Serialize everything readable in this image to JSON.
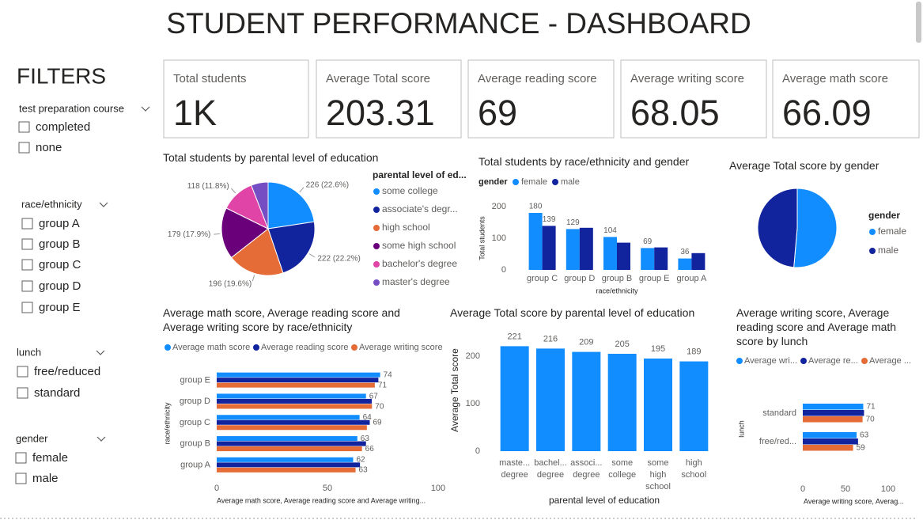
{
  "title": "STUDENT PERFORMANCE - DASHBOARD",
  "filters": {
    "title": "FILTERS",
    "groups": [
      {
        "name": "test preparation course",
        "options": [
          "completed",
          "none"
        ]
      },
      {
        "name": "race/ethnicity",
        "options": [
          "group A",
          "group B",
          "group C",
          "group D",
          "group E"
        ]
      },
      {
        "name": "lunch",
        "options": [
          "free/reduced",
          "standard"
        ]
      },
      {
        "name": "gender",
        "options": [
          "female",
          "male"
        ]
      }
    ]
  },
  "cards": [
    {
      "label": "Total students",
      "value": 1000,
      "value_label": "1K"
    },
    {
      "label": "Average Total score",
      "value": 203.31
    },
    {
      "label": "Average reading score",
      "value": 69
    },
    {
      "label": "Average writing score",
      "value": 68.05
    },
    {
      "label": "Average math score",
      "value": 66.09
    }
  ],
  "chart_data": [
    {
      "type": "pie",
      "title": "Total students by parental level of education",
      "legend_title": "parental level of ed...",
      "categories": [
        "some college",
        "associate's degr...",
        "high school",
        "some high school",
        "bachelor's degree",
        "master's degree"
      ],
      "values": [
        226,
        222,
        196,
        179,
        118,
        59
      ],
      "value_labels": [
        "226 (22.6%)",
        "222 (22.2%)",
        "196 (19.6%)",
        "179 (17.9%)",
        "118 (11.8%)",
        null
      ],
      "colors": [
        "#118DFF",
        "#12239E",
        "#E66C37",
        "#6B007B",
        "#E044A7",
        "#744EC2"
      ]
    },
    {
      "type": "bar",
      "title": "Total students by race/ethnicity and gender",
      "legend_title": "gender",
      "categories": [
        "group C",
        "group D",
        "group B",
        "group E",
        "group A"
      ],
      "series": [
        {
          "name": "female",
          "color": "#118DFF",
          "values": [
            180,
            129,
            104,
            69,
            36
          ],
          "value_labels": [
            "180",
            "129",
            "104",
            "69",
            "36"
          ]
        },
        {
          "name": "male",
          "color": "#12239E",
          "values": [
            139,
            133,
            86,
            71,
            53
          ],
          "value_labels": [
            "139",
            null,
            null,
            null,
            null
          ]
        }
      ],
      "ylim": [
        0,
        200
      ],
      "yticks": [
        0,
        100,
        200
      ],
      "ylabel": "Total students",
      "xlabel": "race/ethnicity"
    },
    {
      "type": "pie",
      "title": "Average Total score by gender",
      "legend_title": "gender",
      "categories": [
        "female",
        "male"
      ],
      "values": [
        208.7,
        197.5
      ],
      "colors": [
        "#118DFF",
        "#12239E"
      ]
    },
    {
      "type": "barh",
      "title": "Average math score, Average reading score and Average writing score by race/ethnicity",
      "categories": [
        "group E",
        "group D",
        "group C",
        "group B",
        "group A"
      ],
      "series": [
        {
          "name": "Average math score",
          "color": "#118DFF",
          "values": [
            73.8,
            67.4,
            64.5,
            63.5,
            61.6
          ],
          "value_labels": [
            "74",
            "67",
            "64",
            "63",
            "62"
          ]
        },
        {
          "name": "Average reading score",
          "color": "#12239E",
          "values": [
            73.0,
            70.0,
            69.1,
            67.4,
            64.7
          ],
          "value_labels": [
            null,
            null,
            "69",
            null,
            null
          ]
        },
        {
          "name": "Average writing score",
          "color": "#E66C37",
          "values": [
            71.4,
            70.1,
            67.8,
            65.6,
            62.7
          ],
          "value_labels": [
            "71",
            "70",
            null,
            "66",
            "63"
          ]
        }
      ],
      "xlim": [
        0,
        100
      ],
      "xticks": [
        0,
        50,
        100
      ],
      "xlabel": "Average math score, Average reading score and Average writing...",
      "ylabel": "race/ethnicity"
    },
    {
      "type": "bar",
      "title": "Average Total score by parental level of education",
      "categories": [
        "maste... degree",
        "bachel... degree",
        "associ... degree",
        "some college",
        "some high school",
        "high school"
      ],
      "values": [
        221,
        216,
        209,
        205,
        195,
        189
      ],
      "color": "#118DFF",
      "ylim": [
        0,
        240
      ],
      "yticks": [
        0,
        100,
        200
      ],
      "ylabel": "Average Total score",
      "xlabel": "parental level of education"
    },
    {
      "type": "barh",
      "title": "Average writing score, Average reading score and Average math score by lunch",
      "categories": [
        "standard",
        "free/red..."
      ],
      "series": [
        {
          "name": "Average wri...",
          "color": "#118DFF",
          "values": [
            70.8,
            63.0
          ],
          "value_labels": [
            "71",
            "63"
          ]
        },
        {
          "name": "Average re...",
          "color": "#12239E",
          "values": [
            71.7,
            64.7
          ],
          "value_labels": [
            null,
            null
          ]
        },
        {
          "name": "Average ...",
          "color": "#E66C37",
          "values": [
            70.0,
            58.9
          ],
          "value_labels": [
            "70",
            "59"
          ]
        }
      ],
      "xlim": [
        0,
        100
      ],
      "xticks": [
        0,
        50,
        100
      ],
      "xlabel": "Average writing score, Averag...",
      "ylabel": "lunch"
    }
  ]
}
